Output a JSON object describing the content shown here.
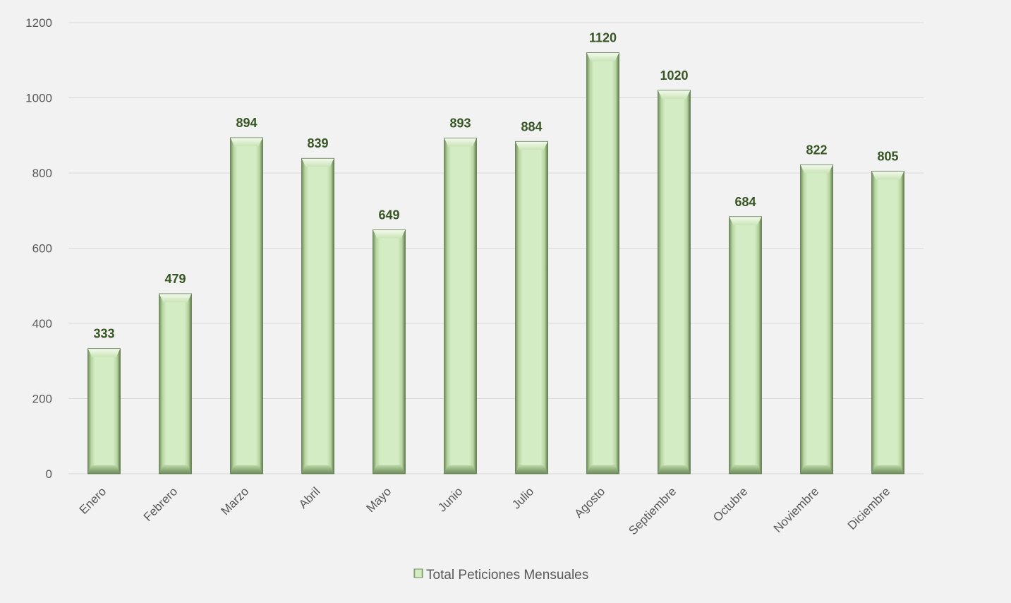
{
  "chart_data": {
    "type": "bar",
    "title": "",
    "xlabel": "",
    "ylabel": "",
    "categories": [
      "Enero",
      "Febrero",
      "Marzo",
      "Abril",
      "Mayo",
      "Junio",
      "Julio",
      "Agosto",
      "Septiembre",
      "Octubre",
      "Noviembre",
      "Diciembre"
    ],
    "series": [
      {
        "name": "Total Peticiones Mensuales",
        "values": [
          333,
          479,
          894,
          839,
          649,
          893,
          884,
          1120,
          1020,
          684,
          822,
          805
        ],
        "color": "#c6e0b4"
      }
    ],
    "ylim": [
      0,
      1200
    ],
    "yticks": [
      0,
      200,
      400,
      600,
      800,
      1000,
      1200
    ],
    "grid": true,
    "legend_position": "bottom",
    "data_label_color": "#375623"
  }
}
